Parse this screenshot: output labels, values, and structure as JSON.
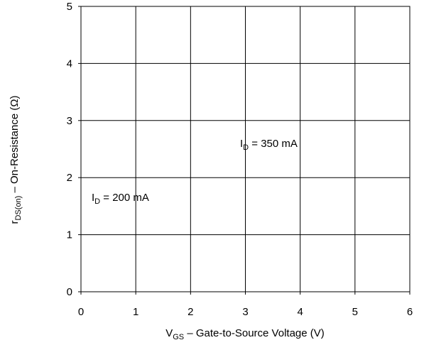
{
  "chart_data": {
    "type": "line",
    "xlabel": {
      "main": "V",
      "sub": "GS",
      "rest": " – Gate-to-Source Voltage (V)"
    },
    "ylabel": {
      "main": "r",
      "sub": "DS(on)",
      "rest": "  –  On-Resistance (Ω)"
    },
    "xlim": [
      0,
      6
    ],
    "ylim": [
      0,
      5
    ],
    "xticks": [
      "0",
      "1",
      "2",
      "3",
      "4",
      "5",
      "6"
    ],
    "yticks": [
      "0",
      "1",
      "2",
      "3",
      "4",
      "5"
    ],
    "grid": true,
    "series": [],
    "annotations": [
      {
        "main": "I",
        "sub": "D",
        "rest": " =  200 mA"
      },
      {
        "main": "I",
        "sub": "D",
        "rest": " =  350 mA"
      }
    ]
  }
}
